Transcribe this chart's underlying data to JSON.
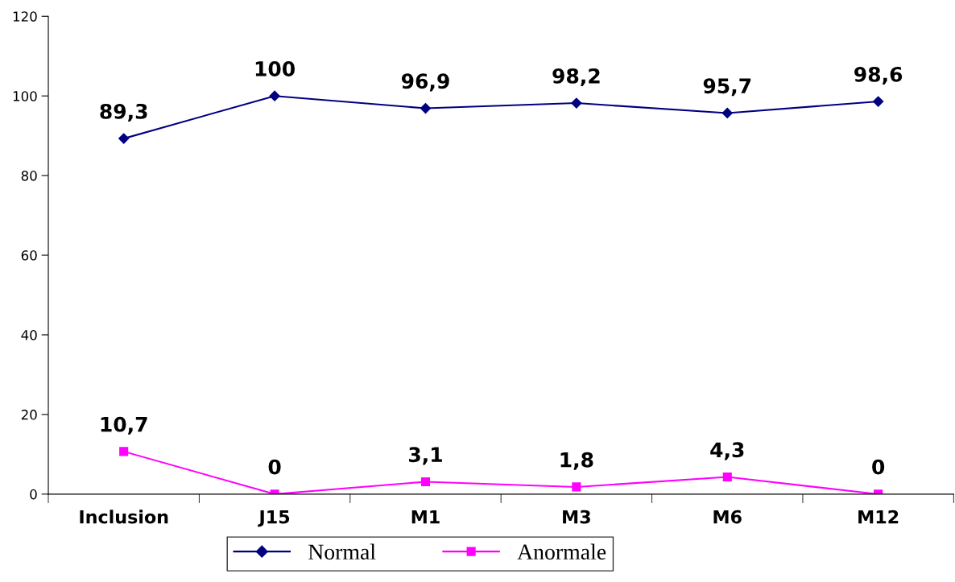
{
  "chart_data": {
    "type": "line",
    "categories": [
      "Inclusion",
      "J15",
      "M1",
      "M3",
      "M6",
      "M12"
    ],
    "series": [
      {
        "name": "Normal",
        "color": "#000080",
        "marker": "diamond",
        "values": [
          89.3,
          100,
          96.9,
          98.2,
          95.7,
          98.6
        ],
        "value_labels": [
          "89,3",
          "100",
          "96,9",
          "98,2",
          "95,7",
          "98,6"
        ]
      },
      {
        "name": "Anormale",
        "color": "#ff00ff",
        "marker": "square",
        "values": [
          10.7,
          0,
          3.1,
          1.8,
          4.3,
          0
        ],
        "value_labels": [
          "10,7",
          "0",
          "3,1",
          "1,8",
          "4,3",
          "0"
        ]
      }
    ],
    "ylim": [
      0,
      120
    ],
    "yticks": [
      0,
      20,
      40,
      60,
      80,
      100,
      120
    ],
    "grid": false,
    "legend": "bottom",
    "line_style": "solid"
  }
}
